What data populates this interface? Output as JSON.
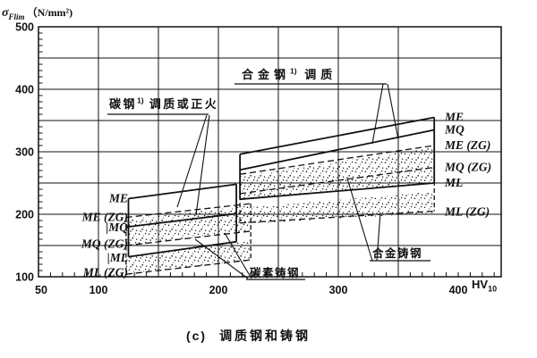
{
  "figure": {
    "caption_index": "(c)",
    "caption_text": "调质钢和铸钢",
    "y_axis_title": {
      "symbol": "σ",
      "subscript": "Flim",
      "unit": "（N/mm²)"
    },
    "x_axis_unit": {
      "main": "HV",
      "subscript": "10"
    }
  },
  "annotations": {
    "alloy_steel": {
      "main": "合金钢",
      "sup": "1)",
      "rest": " 调质"
    },
    "carbon_steel": {
      "main": "碳钢",
      "sup": "1)",
      "rest": " 调质或正火"
    },
    "carbon_cast": {
      "text": "碳素铸钢"
    },
    "alloy_cast": {
      "text": "合金铸钢"
    }
  },
  "colors": {
    "ink": "#111111",
    "background": "#ffffff"
  },
  "chart_data": {
    "type": "line",
    "title": "(c) 调质钢和铸钢",
    "xlabel": "HV10",
    "ylabel": "σFlim（N/mm²)",
    "xlim": [
      50,
      435
    ],
    "ylim": [
      100,
      500
    ],
    "x_ticks": [
      50,
      100,
      200,
      300,
      400
    ],
    "y_ticks": [
      100,
      200,
      300,
      400,
      500
    ],
    "grid": "50-unit grid on both axes, minor ticks every 10",
    "bands": [
      {
        "key": "carbon_wrought",
        "label": "碳钢1) 调质或正火",
        "line_style": "solid",
        "stippled": false,
        "hv_range": [
          125,
          215
        ],
        "series": [
          {
            "grade": "ME",
            "sigma_flim": [
              225,
              248
            ]
          },
          {
            "grade": "MQ",
            "sigma_flim": [
              180,
              201
            ]
          },
          {
            "grade": "ML",
            "sigma_flim": [
              132,
              156
            ]
          }
        ]
      },
      {
        "key": "carbon_cast",
        "label": "碳素铸钢",
        "line_style": "dashed",
        "stippled": true,
        "hv_range": [
          123,
          227
        ],
        "series": [
          {
            "grade": "ME (ZG)",
            "sigma_flim": [
              195,
              217
            ]
          },
          {
            "grade": "MQ (ZG)",
            "sigma_flim": [
              150,
              173
            ]
          },
          {
            "grade": "ML (ZG)",
            "sigma_flim": [
              104,
              127
            ]
          }
        ]
      },
      {
        "key": "alloy_wrought",
        "label": "合金钢1) 调质",
        "line_style": "solid",
        "stippled": false,
        "hv_range": [
          218,
          380
        ],
        "series": [
          {
            "grade": "ME",
            "sigma_flim": [
              296,
              355
            ]
          },
          {
            "grade": "MQ",
            "sigma_flim": [
              271,
              335
            ]
          },
          {
            "grade": "ML",
            "sigma_flim": [
              224,
              250
            ]
          }
        ]
      },
      {
        "key": "alloy_cast",
        "label": "合金铸钢",
        "line_style": "dashed",
        "stippled": true,
        "hv_range": [
          218,
          380
        ],
        "series": [
          {
            "grade": "ME (ZG)",
            "sigma_flim": [
              264,
              310
            ]
          },
          {
            "grade": "MQ (ZG)",
            "sigma_flim": [
              233,
              275
            ]
          },
          {
            "grade": "ML (ZG)",
            "sigma_flim": [
              186,
              205
            ]
          }
        ]
      }
    ],
    "left_grade_labels": [
      {
        "text": "ME",
        "sigma": 226
      },
      {
        "text": "ME (ZG)",
        "sigma": 196
      },
      {
        "text": "|MQ",
        "sigma": 179
      },
      {
        "text": "MQ (ZG)",
        "sigma": 153
      },
      {
        "text": "|ML",
        "sigma": 131
      },
      {
        "text": "ML (ZG)",
        "sigma": 107
      }
    ],
    "right_grade_labels": [
      {
        "text": "ME",
        "sigma": 356
      },
      {
        "text": "MQ",
        "sigma": 336
      },
      {
        "text": "ME (ZG)",
        "sigma": 311
      },
      {
        "text": "MQ (ZG)",
        "sigma": 276
      },
      {
        "text": "ML",
        "sigma": 251
      },
      {
        "text": "ML (ZG)",
        "sigma": 204
      }
    ]
  }
}
